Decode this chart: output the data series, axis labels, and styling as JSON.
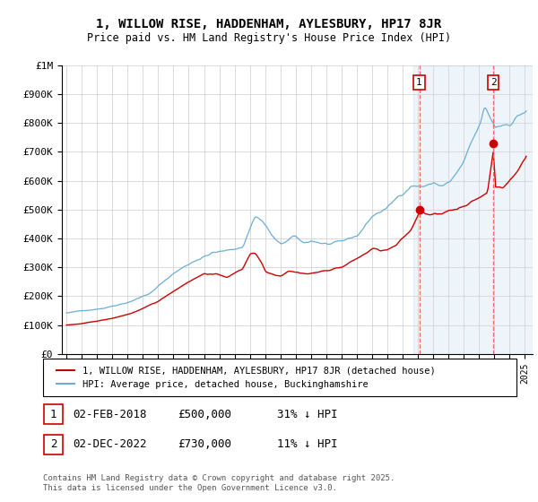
{
  "title_line1": "1, WILLOW RISE, HADDENHAM, AYLESBURY, HP17 8JR",
  "title_line2": "Price paid vs. HM Land Registry's House Price Index (HPI)",
  "legend_label1": "1, WILLOW RISE, HADDENHAM, AYLESBURY, HP17 8JR (detached house)",
  "legend_label2": "HPI: Average price, detached house, Buckinghamshire",
  "transaction1_date": "02-FEB-2018",
  "transaction1_price": "£500,000",
  "transaction1_hpi": "31% ↓ HPI",
  "transaction2_date": "02-DEC-2022",
  "transaction2_price": "£730,000",
  "transaction2_hpi": "11% ↓ HPI",
  "footnote": "Contains HM Land Registry data © Crown copyright and database right 2025.\nThis data is licensed under the Open Government Licence v3.0.",
  "hpi_color": "#6baed6",
  "price_color": "#cc0000",
  "vline_color": "#ee6666",
  "ylim_min": 0,
  "ylim_max": 1000000,
  "yticks": [
    0,
    100000,
    200000,
    300000,
    400000,
    500000,
    600000,
    700000,
    800000,
    900000,
    1000000
  ],
  "ytick_labels": [
    "£0",
    "£100K",
    "£200K",
    "£300K",
    "£400K",
    "£500K",
    "£600K",
    "£700K",
    "£800K",
    "£900K",
    "£1M"
  ],
  "transaction1_x": 2018.08,
  "transaction1_y": 500000,
  "transaction2_x": 2022.92,
  "transaction2_y": 730000,
  "xmin": 1994.7,
  "xmax": 2025.5,
  "shade_start": 2017.7,
  "xticks": [
    1995,
    1996,
    1997,
    1998,
    1999,
    2000,
    2001,
    2002,
    2003,
    2004,
    2005,
    2006,
    2007,
    2008,
    2009,
    2010,
    2011,
    2012,
    2013,
    2014,
    2015,
    2016,
    2017,
    2018,
    2019,
    2020,
    2021,
    2022,
    2023,
    2024,
    2025
  ]
}
